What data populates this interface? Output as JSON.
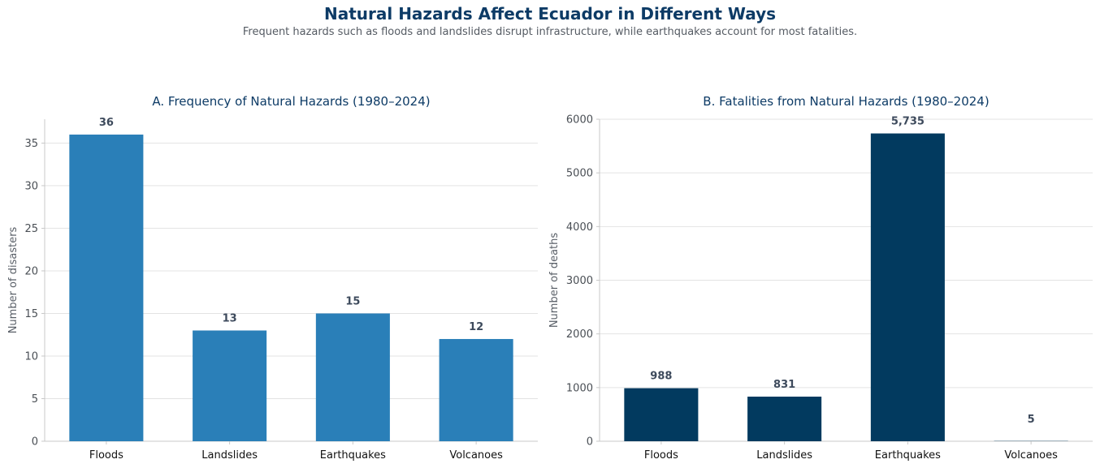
{
  "title": "Natural Hazards Affect Ecuador in Different Ways",
  "subtitle": "Frequent hazards such as floods and landslides disrupt infrastructure, while earthquakes account for most fatalities.",
  "chart_data": [
    {
      "type": "bar",
      "title": "A. Frequency of Natural Hazards (1980–2024)",
      "xlabel": "",
      "ylabel": "Number of disasters",
      "categories": [
        "Floods",
        "Landslides",
        "Earthquakes",
        "Volcanoes"
      ],
      "values": [
        36,
        13,
        15,
        12
      ],
      "value_labels": [
        "36",
        "13",
        "15",
        "12"
      ],
      "ylim": [
        0,
        37.8
      ],
      "yticks": [
        0,
        5,
        10,
        15,
        20,
        25,
        30,
        35
      ],
      "grid": "horizontal",
      "color": "#2a7fb8"
    },
    {
      "type": "bar",
      "title": "B. Fatalities from Natural Hazards (1980–2024)",
      "xlabel": "",
      "ylabel": "Number of deaths",
      "categories": [
        "Floods",
        "Landslides",
        "Earthquakes",
        "Volcanoes"
      ],
      "values": [
        988,
        831,
        5735,
        5
      ],
      "value_labels": [
        "988",
        "831",
        "5,735",
        "5"
      ],
      "ylim": [
        0,
        6000
      ],
      "yticks": [
        0,
        1000,
        2000,
        3000,
        4000,
        5000,
        6000
      ],
      "grid": "horizontal",
      "color": "#023a5f"
    }
  ]
}
